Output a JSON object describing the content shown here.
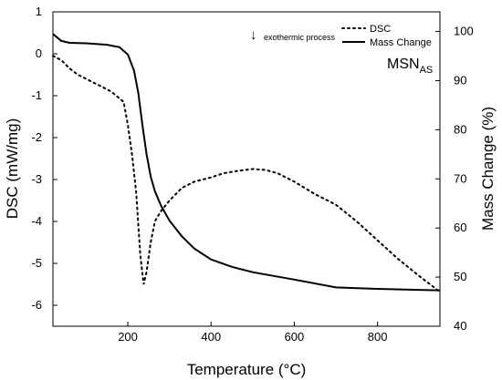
{
  "chart_data": {
    "type": "line",
    "xlabel": "Temperature (°C)",
    "ylabel_left": "DSC (mW/mg)",
    "ylabel_right": "Mass Change (%)",
    "xlim": [
      20,
      950
    ],
    "ylim_left": [
      -6.5,
      1
    ],
    "ylim_right": [
      40,
      104
    ],
    "x_ticks": [
      200,
      400,
      600,
      800
    ],
    "y_left_ticks": [
      1,
      0,
      -1,
      -2,
      -3,
      -4,
      -5,
      -6
    ],
    "y_right_ticks": [
      100,
      90,
      80,
      70,
      60,
      50,
      40
    ],
    "annotation": "exothermic process",
    "annotation_arrow": "↓",
    "sample_label": "MSN",
    "sample_label_sub": "AS",
    "series": [
      {
        "name": "DSC",
        "axis": "left",
        "style": "dotted",
        "x": [
          20,
          40,
          60,
          80,
          100,
          130,
          160,
          190,
          200,
          210,
          220,
          230,
          238,
          245,
          255,
          265,
          280,
          300,
          330,
          360,
          380,
          400,
          430,
          460,
          500,
          530,
          560,
          600,
          650,
          700,
          750,
          800,
          850,
          900,
          950
        ],
        "y": [
          -0.05,
          -0.15,
          -0.35,
          -0.5,
          -0.6,
          -0.75,
          -0.9,
          -1.15,
          -1.7,
          -2.4,
          -3.3,
          -4.8,
          -5.5,
          -5.2,
          -4.5,
          -4.0,
          -3.75,
          -3.5,
          -3.2,
          -3.05,
          -3.0,
          -2.95,
          -2.85,
          -2.8,
          -2.75,
          -2.77,
          -2.85,
          -3.05,
          -3.35,
          -3.6,
          -4.0,
          -4.45,
          -4.9,
          -5.3,
          -5.68
        ]
      },
      {
        "name": "Mass Change",
        "axis": "right",
        "style": "solid",
        "x": [
          20,
          40,
          60,
          100,
          150,
          180,
          200,
          215,
          225,
          235,
          245,
          255,
          265,
          280,
          300,
          330,
          360,
          400,
          450,
          500,
          600,
          700,
          800,
          900,
          950
        ],
        "y": [
          99.5,
          98.1,
          97.7,
          97.6,
          97.3,
          96.8,
          95.3,
          92,
          87.5,
          81,
          75,
          70.5,
          67.5,
          64.5,
          61.5,
          58.3,
          55.8,
          53.6,
          52.1,
          51.0,
          49.5,
          47.9,
          47.6,
          47.4,
          47.3
        ]
      }
    ]
  },
  "colors": {
    "line": "#000000",
    "background": "#ffffff"
  }
}
